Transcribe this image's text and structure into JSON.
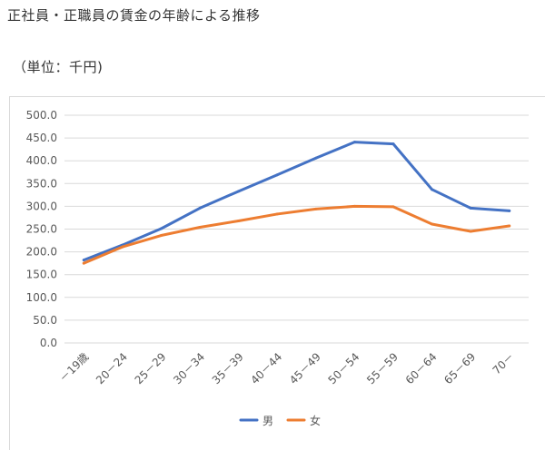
{
  "page": {
    "title": "正社員・正職員の賃金の年齢による推移",
    "unit_note": "（単位：千円)"
  },
  "chart_data": {
    "type": "line",
    "categories": [
      "－19歳",
      "20－24",
      "25－29",
      "30－34",
      "35－39",
      "40－44",
      "45－49",
      "50－54",
      "55－59",
      "60－64",
      "65－69",
      "70－"
    ],
    "series": [
      {
        "name": "男",
        "color": "#4472C4",
        "values": [
          182,
          215,
          251,
          296,
          333,
          369,
          406,
          441,
          437,
          337,
          296,
          290
        ]
      },
      {
        "name": "女",
        "color": "#ED7D31",
        "values": [
          175,
          211,
          236,
          254,
          268,
          283,
          294,
          300,
          299,
          261,
          245,
          257
        ]
      }
    ],
    "y_ticks": [
      "500.0",
      "450.0",
      "400.0",
      "350.0",
      "300.0",
      "250.0",
      "200.0",
      "150.0",
      "100.0",
      "50.0",
      "0.0"
    ],
    "ylim": [
      0,
      500
    ],
    "grid": true,
    "legend_position": "bottom"
  }
}
